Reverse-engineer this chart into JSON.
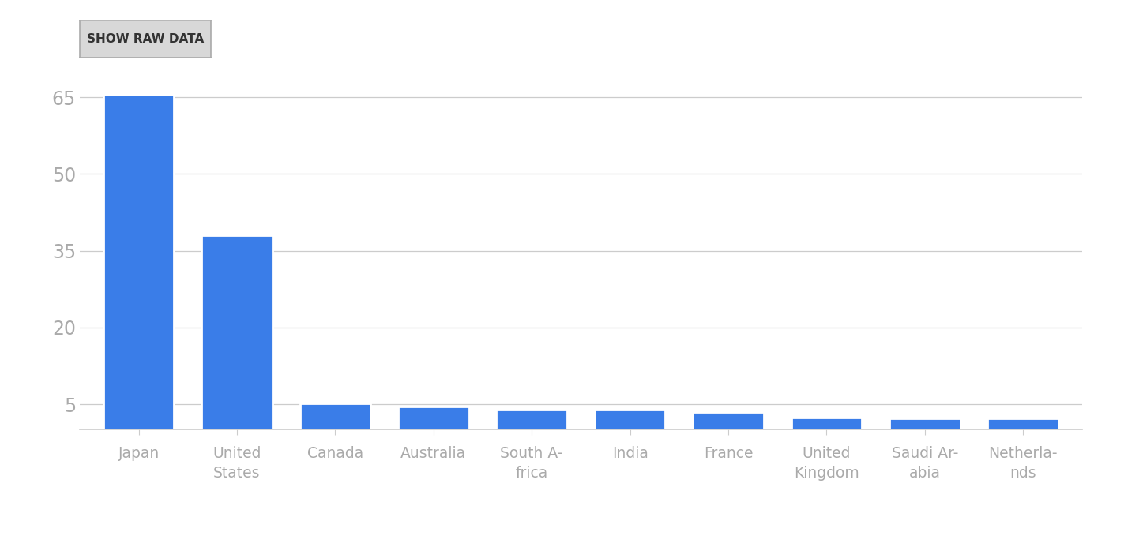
{
  "categories": [
    "Japan",
    "United\nStates",
    "Canada",
    "Australia",
    "South A-\nfrica",
    "India",
    "France",
    "United\nKingdom",
    "Saudi Ar-\nabia",
    "Netherla-\nnds"
  ],
  "values": [
    65.5,
    38.0,
    5.1,
    4.6,
    4.0,
    4.0,
    3.5,
    2.4,
    2.3,
    2.3
  ],
  "bar_color": "#3a7de8",
  "background_color": "#ffffff",
  "yticks": [
    5,
    20,
    35,
    50,
    65
  ],
  "ylim": [
    0,
    70
  ],
  "button_text": "SHOW RAW DATA",
  "button_color": "#d8d8d8",
  "button_text_color": "#333333",
  "axis_color": "#cccccc",
  "tick_label_color": "#aaaaaa",
  "font_family": "DejaVu Sans"
}
